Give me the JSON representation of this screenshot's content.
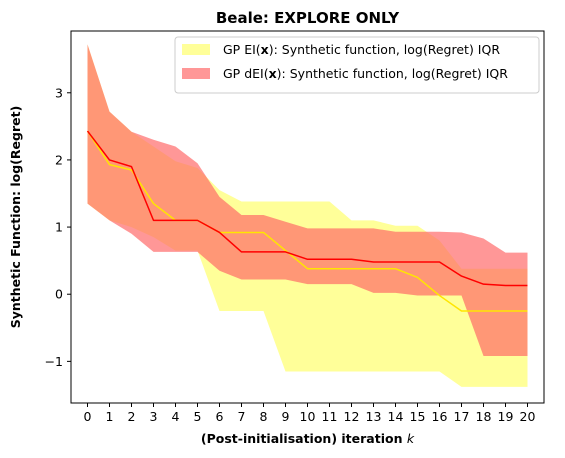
{
  "chart_data": {
    "type": "area",
    "title": "Beale: EXPLORE ONLY",
    "xlabel_prefix": "(Post-initialisation) iteration ",
    "xlabel_var": "k",
    "ylabel": "Synthetic Function: log(Regret)",
    "xlim": [
      -0.75,
      20.75
    ],
    "ylim": [
      -1.62,
      3.92
    ],
    "x": [
      0,
      1,
      2,
      3,
      4,
      5,
      6,
      7,
      8,
      9,
      10,
      11,
      12,
      13,
      14,
      15,
      16,
      17,
      18,
      19,
      20
    ],
    "xticks": [
      "0",
      "1",
      "2",
      "3",
      "4",
      "5",
      "6",
      "7",
      "8",
      "9",
      "10",
      "11",
      "12",
      "13",
      "14",
      "15",
      "16",
      "17",
      "18",
      "19",
      "20"
    ],
    "yticks": [
      -1,
      0,
      1,
      2,
      3
    ],
    "ytick_labels": [
      "−1",
      "0",
      "1",
      "2",
      "3"
    ],
    "grid": false,
    "legend_position": "top-right",
    "series": [
      {
        "legend_prefix": "GP EI(",
        "legend_bold": "x",
        "legend_suffix": "):   Synthetic function, log(Regret) IQR",
        "fill_color": "#ffff99",
        "line_color": "#ffe600",
        "median": [
          2.43,
          1.93,
          1.85,
          1.35,
          1.1,
          1.1,
          0.92,
          0.92,
          0.92,
          0.65,
          0.38,
          0.38,
          0.38,
          0.38,
          0.38,
          0.25,
          -0.02,
          -0.25,
          -0.25,
          -0.25,
          -0.25
        ],
        "q1": [
          1.35,
          1.1,
          1.0,
          0.85,
          0.65,
          0.65,
          -0.25,
          -0.25,
          -0.25,
          -1.15,
          -1.15,
          -1.15,
          -1.15,
          -1.15,
          -1.15,
          -1.15,
          -1.15,
          -1.38,
          -1.38,
          -1.38,
          -1.38
        ],
        "q3": [
          3.72,
          2.72,
          2.42,
          2.2,
          1.98,
          1.88,
          1.55,
          1.38,
          1.38,
          1.38,
          1.38,
          1.38,
          1.1,
          1.1,
          1.02,
          1.02,
          0.8,
          0.38,
          0.38,
          0.38,
          0.38
        ]
      },
      {
        "legend_prefix": "GP dEI(",
        "legend_bold": "x",
        "legend_suffix": "): Synthetic function, log(Regret) IQR",
        "fill_color": "#ff6666",
        "line_color": "#ff0000",
        "median": [
          2.43,
          2.0,
          1.9,
          1.1,
          1.1,
          1.1,
          0.92,
          0.63,
          0.63,
          0.63,
          0.52,
          0.52,
          0.52,
          0.48,
          0.48,
          0.48,
          0.48,
          0.27,
          0.15,
          0.13,
          0.13
        ],
        "q1": [
          1.35,
          1.1,
          0.9,
          0.63,
          0.63,
          0.63,
          0.35,
          0.22,
          0.22,
          0.22,
          0.15,
          0.15,
          0.15,
          0.02,
          0.02,
          -0.02,
          -0.02,
          -0.02,
          -0.92,
          -0.92,
          -0.92
        ],
        "q3": [
          3.72,
          2.72,
          2.42,
          2.3,
          2.2,
          1.95,
          1.45,
          1.18,
          1.18,
          1.08,
          0.98,
          0.98,
          0.98,
          0.98,
          0.93,
          0.93,
          0.93,
          0.92,
          0.83,
          0.62,
          0.62
        ]
      }
    ]
  }
}
